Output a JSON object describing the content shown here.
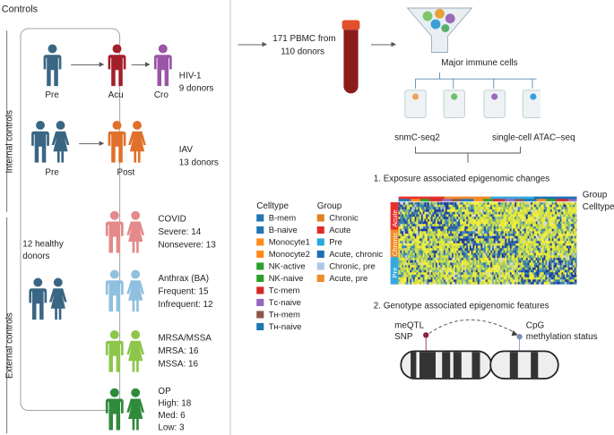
{
  "controls_title": "Controls",
  "internal_label": "Internal controls",
  "external_label": "External controls",
  "healthy_donors": [
    "12 healthy",
    "donors"
  ],
  "row1": {
    "stages": [
      "Pre",
      "Acu",
      "Cro"
    ],
    "title": "HIV-1",
    "detail": "9 donors"
  },
  "row2": {
    "stages": [
      "Pre",
      "Post"
    ],
    "title": "IAV",
    "detail": "13 donors"
  },
  "covid": {
    "title": "COVID",
    "lines": [
      "Severe: 14",
      "Nonsevere: 13"
    ]
  },
  "anthrax": {
    "title": "Anthrax (BA)",
    "lines": [
      "Frequent: 15",
      "Infrequent: 12"
    ]
  },
  "mrsa": {
    "title": "MRSA/MSSA",
    "lines": [
      "MRSA: 16",
      "MSSA: 16"
    ]
  },
  "op": {
    "title": "OP",
    "lines": [
      "High: 18",
      "Med: 6",
      "Low: 3"
    ]
  },
  "colors": {
    "pre": "#3a6684",
    "acu": "#a3202a",
    "cro": "#9a55a6",
    "post": "#e0702a",
    "covid": "#e48a8a",
    "anthrax": "#8fc0df",
    "mrsa": "#8dc64a",
    "op": "#2f8a3c"
  },
  "pbmc": [
    "171 PBMC from",
    "110 donors"
  ],
  "major": "Major immune cells",
  "assay1": "snmC-seq2",
  "assay2": "single-cell ATAC–seq",
  "section1": "1. Exposure associated epigenomic changes",
  "section2": "2. Genotype associated epigenomic features",
  "heatmap": {
    "rows": [
      "Acute",
      "Chronic",
      "Pre"
    ],
    "row_colors": [
      "#e8312f",
      "#ef8a2d",
      "#35a9de"
    ],
    "track_labels": [
      "Group",
      "Celltype"
    ]
  },
  "legend": {
    "celltype_title": "Celltype",
    "celltype": [
      {
        "label": "B-mem",
        "color": "#1f77b4"
      },
      {
        "label": "B-naive",
        "color": "#1f77b4"
      },
      {
        "label": "Monocyte1",
        "color": "#ff8c1a"
      },
      {
        "label": "Monocyte2",
        "color": "#ff8c1a"
      },
      {
        "label": "NK-active",
        "color": "#2ca02c"
      },
      {
        "label": "NK-naive",
        "color": "#2ca02c"
      },
      {
        "label": "Tᴄ-mem",
        "color": "#d62728"
      },
      {
        "label": "Tᴄ-naive",
        "color": "#9467bd"
      },
      {
        "label": "Tʜ-mem",
        "color": "#8c564b"
      },
      {
        "label": "Tʜ-naive",
        "color": "#1f77b4"
      }
    ],
    "group_title": "Group",
    "group": [
      {
        "label": "Chronic",
        "color": "#e67e22"
      },
      {
        "label": "Acute",
        "color": "#e02b2b"
      },
      {
        "label": "Pre",
        "color": "#29a8e0"
      },
      {
        "label": "Acute, chronic",
        "color": "#1f6fb4"
      },
      {
        "label": "Chronic, pre",
        "color": "#aec7e8"
      },
      {
        "label": "Acute, pre",
        "color": "#f08a2a"
      }
    ]
  },
  "snp": [
    "meQTL",
    "SNP"
  ],
  "cpg": [
    "CpG",
    "methylation status"
  ]
}
